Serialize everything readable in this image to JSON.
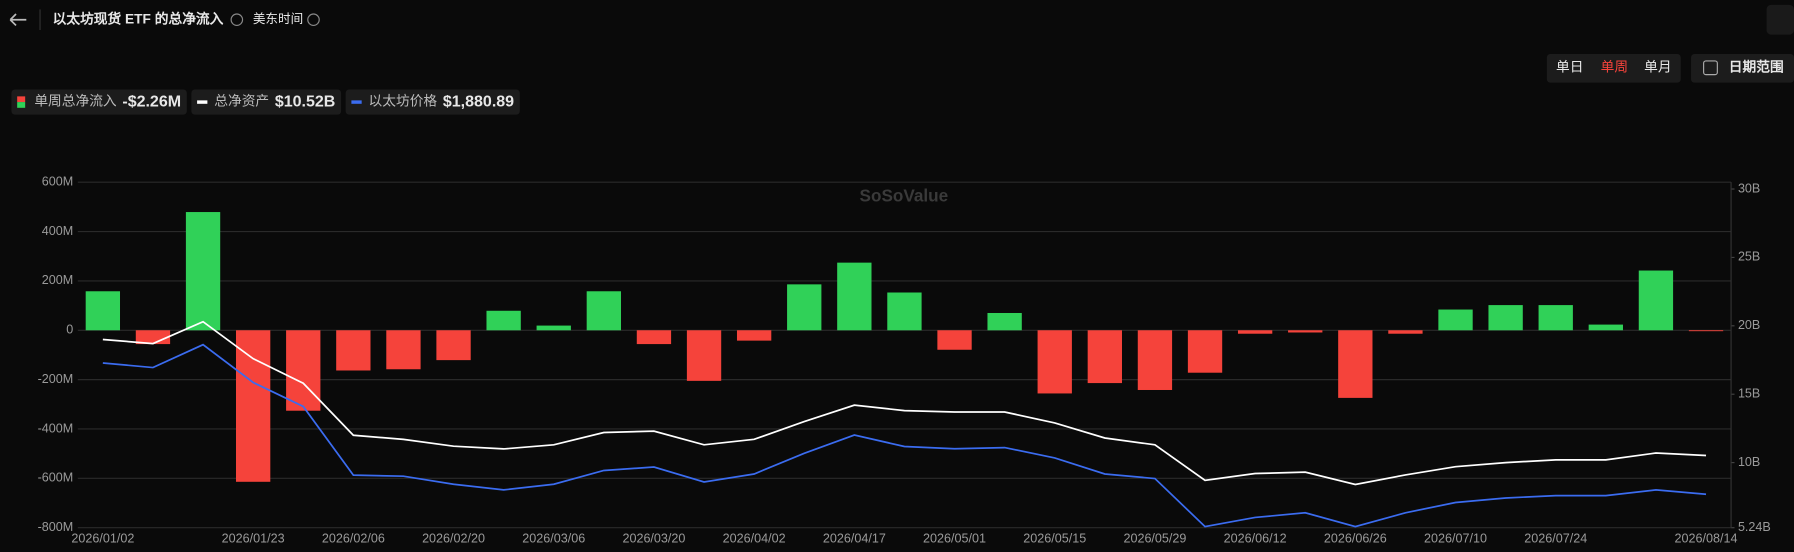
{
  "header": {
    "title": "以太坊现货 ETF 的总净流入",
    "timezone": "美东时间",
    "ranges": [
      "单日",
      "单周",
      "单月"
    ],
    "date_range": "日期范围",
    "watermark": "SoSoValue"
  },
  "chart_data": {
    "type": "bar",
    "categories": [
      "2026/01/02",
      null,
      null,
      "2026/01/23",
      null,
      "2026/02/06",
      null,
      "2026/02/20",
      null,
      "2026/03/06",
      null,
      "2026/03/20",
      null,
      "2026/04/02",
      null,
      "2026/04/17",
      null,
      "2026/05/01",
      null,
      "2026/05/15",
      null,
      "2026/05/29",
      null,
      "2026/06/12",
      null,
      "2026/06/26",
      null,
      "2026/07/10",
      null,
      "2026/07/24",
      null,
      null,
      "2026/08/14"
    ],
    "series": [
      {
        "name": "单周总净流入",
        "current_label": "-$2.26M",
        "positive_color": "#30d158",
        "negative_color": "#f5433b",
        "values": [
          158,
          -56,
          479,
          -614,
          -326,
          -163,
          -158,
          -121,
          79,
          19,
          158,
          -56,
          -205,
          -42,
          186,
          274,
          153,
          -79,
          70,
          -256,
          -214,
          -242,
          -172,
          -14,
          -9,
          -274,
          -14,
          84,
          102,
          102,
          23,
          242,
          -2.26
        ]
      },
      {
        "name": "总净资产",
        "current_label": "$10.52B",
        "color": "#ffffff",
        "axis": "y2",
        "values": [
          19.0,
          18.7,
          20.3,
          17.6,
          15.8,
          12.0,
          11.7,
          11.2,
          11.0,
          11.3,
          12.2,
          12.3,
          11.3,
          11.7,
          13.0,
          14.2,
          13.8,
          13.7,
          13.7,
          12.9,
          11.8,
          11.3,
          8.7,
          9.2,
          9.3,
          8.4,
          9.1,
          9.7,
          10.0,
          10.2,
          10.2,
          10.7,
          10.52
        ]
      },
      {
        "name": "以太坊价格",
        "current_label": "$1,880.89",
        "color": "#3b6cf0",
        "axis": "y3",
        "values": [
          3298,
          3249,
          3496,
          3088,
          2829,
          2088,
          2076,
          1989,
          1928,
          1989,
          2138,
          2175,
          2014,
          2100,
          2323,
          2520,
          2397,
          2372,
          2385,
          2273,
          2100,
          2051,
          1532,
          1631,
          1681,
          1532,
          1681,
          1792,
          1841,
          1866,
          1866,
          1928,
          1880.89
        ]
      }
    ],
    "ylim": [
      -800,
      600
    ],
    "yticks": [
      {
        "value": -800,
        "label": "-800M"
      },
      {
        "value": -600,
        "label": "-600M"
      },
      {
        "value": -400,
        "label": "-400M"
      },
      {
        "value": -200,
        "label": "-200M"
      },
      0,
      {
        "value": 200,
        "label": "200M"
      },
      {
        "value": 400,
        "label": "400M"
      },
      {
        "value": 600,
        "label": "600M"
      }
    ],
    "y2lim": [
      5.24,
      30.5
    ],
    "y2ticks": [
      {
        "value": 5.24,
        "label": "5.24B"
      },
      {
        "value": 10,
        "label": "10B"
      },
      {
        "value": 15,
        "label": "15B"
      },
      {
        "value": 20,
        "label": "20B"
      },
      {
        "value": 25,
        "label": "25B"
      },
      {
        "value": 30,
        "label": "30B"
      }
    ],
    "y3lim": [
      1520,
      5250
    ],
    "grid": true
  }
}
